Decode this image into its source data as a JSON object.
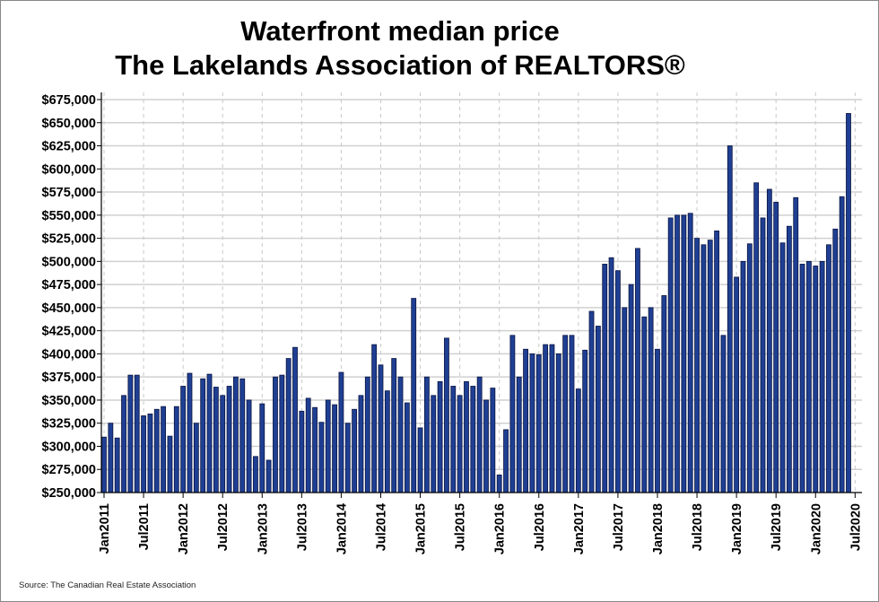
{
  "chart_data": {
    "type": "bar",
    "title": "Waterfront median price",
    "subtitle": "The Lakelands Association of REALTORS®",
    "source": "Source: The Canadian Real Estate Association",
    "xlabel": "",
    "ylabel": "",
    "ylim": [
      250000,
      675000
    ],
    "ytick_step": 25000,
    "grid": true,
    "bar_color": "#1f3f93",
    "x_start": "Jan2011",
    "x_tick_labels": [
      "Jan2011",
      "Jul2011",
      "Jan2012",
      "Jul2012",
      "Jan2013",
      "Jul2013",
      "Jan2014",
      "Jul2014",
      "Jan2015",
      "Jul2015",
      "Jan2016",
      "Jul2016",
      "Jan2017",
      "Jul2017",
      "Jan2018",
      "Jul2018",
      "Jan2019",
      "Jul2019",
      "Jan2020",
      "Jul2020"
    ],
    "y_tick_labels": [
      "$250,000",
      "$275,000",
      "$300,000",
      "$325,000",
      "$350,000",
      "$375,000",
      "$400,000",
      "$425,000",
      "$450,000",
      "$475,000",
      "$500,000",
      "$525,000",
      "$550,000",
      "$575,000",
      "$600,000",
      "$625,000",
      "$650,000",
      "$675,000"
    ],
    "values": [
      310000,
      325000,
      309000,
      355000,
      377000,
      377000,
      333000,
      335000,
      340000,
      343000,
      311000,
      343000,
      365000,
      379000,
      325000,
      373000,
      378000,
      364000,
      355000,
      365000,
      375000,
      373000,
      350000,
      289000,
      346000,
      285000,
      375000,
      377000,
      395000,
      407000,
      338000,
      352000,
      342000,
      326000,
      350000,
      345000,
      380000,
      325000,
      340000,
      355000,
      375000,
      410000,
      388000,
      360000,
      395000,
      375000,
      347000,
      460000,
      320000,
      375000,
      355000,
      370000,
      417000,
      365000,
      355000,
      370000,
      365000,
      375000,
      350000,
      363000,
      269000,
      318000,
      420000,
      375000,
      405000,
      400000,
      399000,
      410000,
      410000,
      400000,
      420000,
      420000,
      362000,
      404000,
      446000,
      430000,
      497000,
      504000,
      490000,
      450000,
      475000,
      514000,
      440000,
      450000,
      405000,
      463000,
      547000,
      550000,
      550000,
      552000,
      525000,
      518000,
      523000,
      533000,
      420000,
      625000,
      483000,
      500000,
      519000,
      585000,
      547000,
      578000,
      564000,
      520000,
      538000,
      569000,
      497000,
      500000,
      495000,
      500000,
      518000,
      535000,
      570000,
      660000
    ]
  }
}
